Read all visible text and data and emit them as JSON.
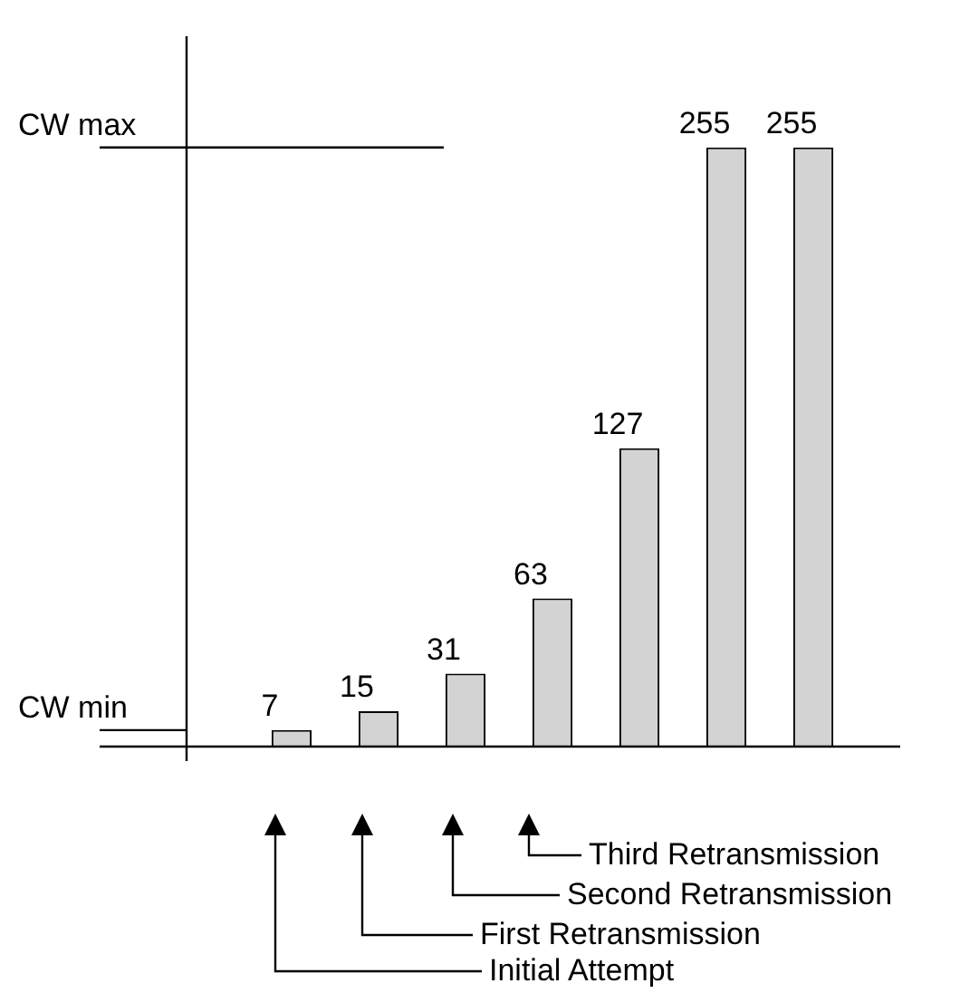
{
  "chart_data": {
    "type": "bar",
    "categories": [
      null,
      null,
      null,
      null,
      null,
      null,
      null
    ],
    "values": [
      7,
      15,
      31,
      63,
      127,
      255,
      255
    ],
    "color": "#d3d3d3",
    "data_labels": true,
    "tick_labels": false,
    "legend": false,
    "ref_lines": [
      {
        "axis": "y",
        "value": 255,
        "label": "CW max"
      },
      {
        "axis": "y",
        "value": 7,
        "label": "CW min"
      }
    ],
    "annotations": [
      "Third Retransmission",
      "Second Retransmission",
      "First Retransmission",
      "Initial Attempt"
    ]
  }
}
